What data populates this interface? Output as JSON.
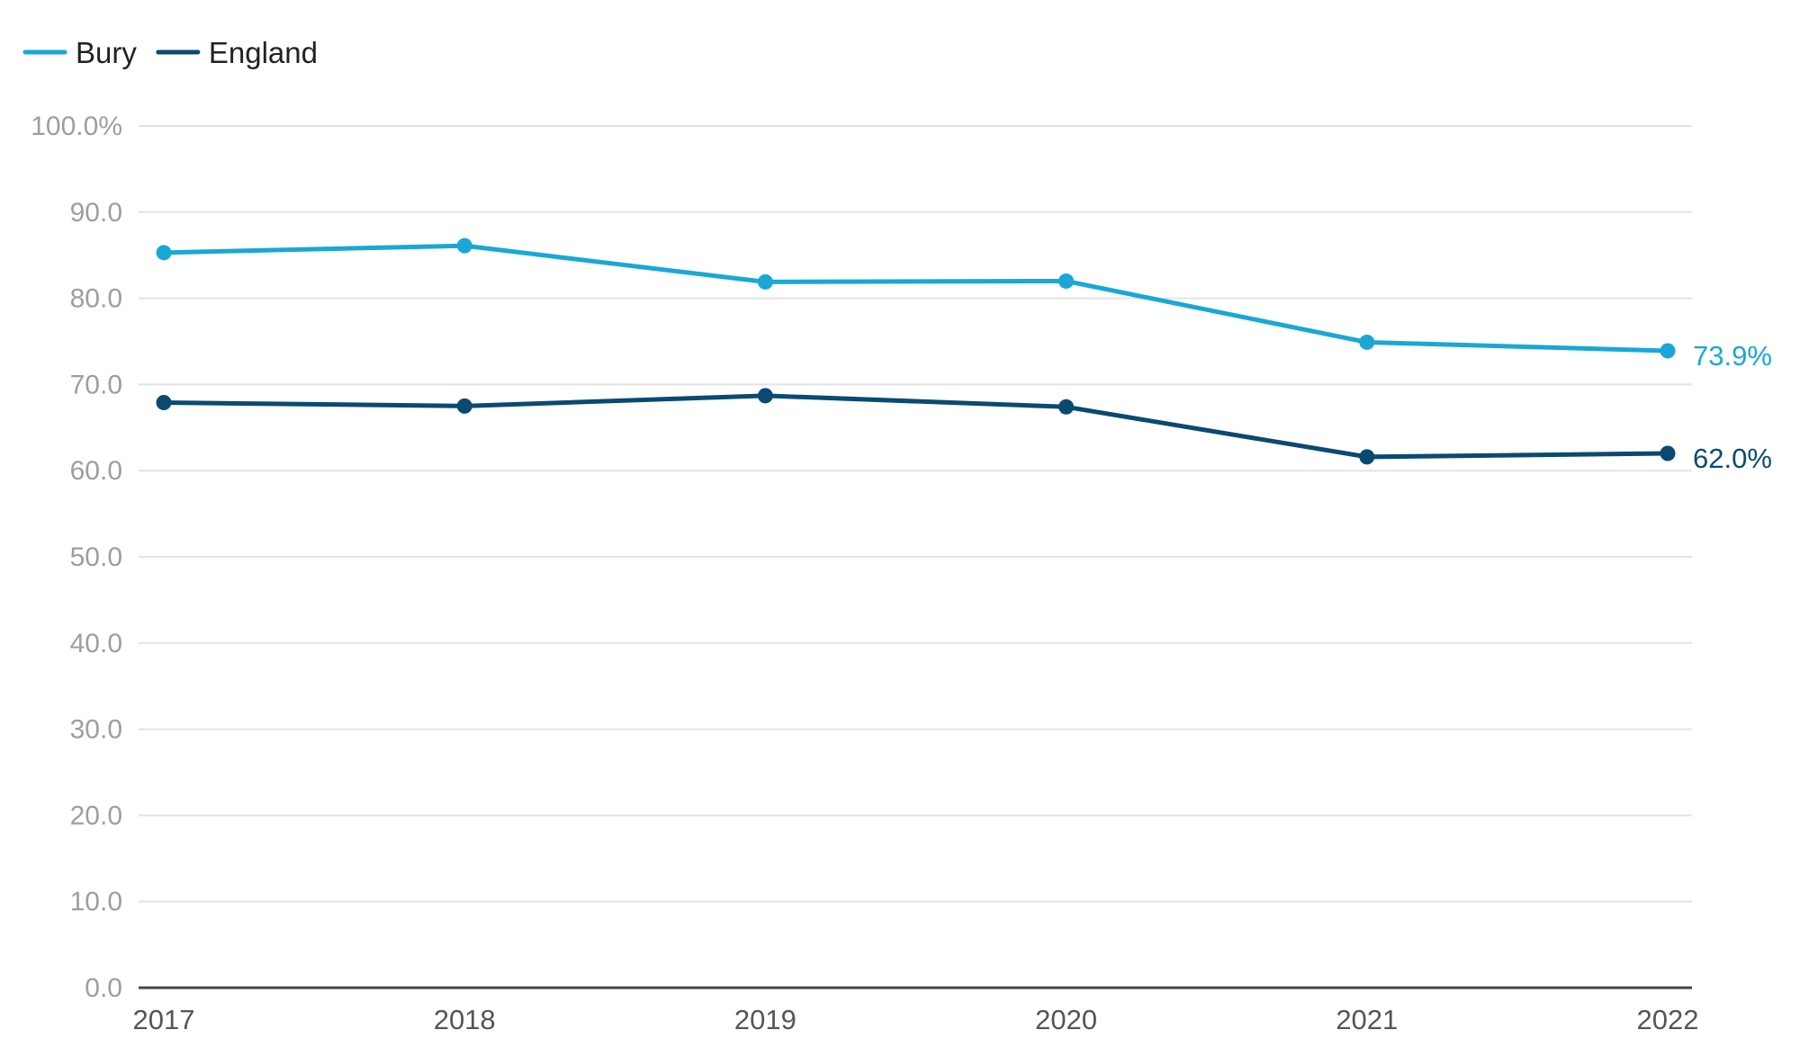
{
  "chart_data": {
    "type": "line",
    "title": "",
    "xlabel": "",
    "ylabel": "",
    "categories": [
      "2017",
      "2018",
      "2019",
      "2020",
      "2021",
      "2022"
    ],
    "ylim": [
      0,
      100
    ],
    "yticks": [
      0,
      10,
      20,
      30,
      40,
      50,
      60,
      70,
      80,
      90,
      100
    ],
    "ytick_labels": [
      "0.0",
      "10.0",
      "20.0",
      "30.0",
      "40.0",
      "50.0",
      "60.0",
      "70.0",
      "80.0",
      "90.0",
      "100.0%"
    ],
    "grid": true,
    "legend_position": "top-left",
    "series": [
      {
        "name": "Bury",
        "color": "#1aa7d6",
        "values": [
          85.3,
          86.1,
          81.9,
          82.0,
          74.9,
          73.9
        ],
        "end_label": "73.9%"
      },
      {
        "name": "England",
        "color": "#0a4a72",
        "values": [
          67.9,
          67.5,
          68.7,
          67.4,
          61.6,
          62.0
        ],
        "end_label": "62.0%"
      }
    ]
  }
}
